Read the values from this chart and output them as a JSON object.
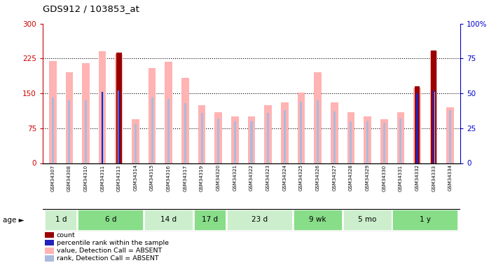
{
  "title": "GDS912 / 103853_at",
  "samples": [
    "GSM34307",
    "GSM34308",
    "GSM34310",
    "GSM34311",
    "GSM34313",
    "GSM34314",
    "GSM34315",
    "GSM34316",
    "GSM34317",
    "GSM34319",
    "GSM34320",
    "GSM34321",
    "GSM34322",
    "GSM34323",
    "GSM34324",
    "GSM34325",
    "GSM34326",
    "GSM34327",
    "GSM34328",
    "GSM34329",
    "GSM34330",
    "GSM34331",
    "GSM34332",
    "GSM34333",
    "GSM34334"
  ],
  "pink_values": [
    220,
    195,
    215,
    240,
    235,
    95,
    205,
    218,
    183,
    125,
    110,
    100,
    100,
    125,
    130,
    152,
    195,
    130,
    110,
    100,
    95,
    110,
    162,
    240,
    120
  ],
  "blue_rank_pct": [
    47,
    45,
    45,
    51,
    52,
    28,
    47,
    46,
    43,
    36,
    32,
    30,
    30,
    36,
    38,
    44,
    45,
    37,
    30,
    30,
    29,
    32,
    49,
    51,
    38
  ],
  "count_indices": [
    4,
    22,
    23
  ],
  "count_values": [
    237,
    165,
    243
  ],
  "percentile_indices": [
    3,
    4,
    22,
    23
  ],
  "percentile_pct": [
    51,
    52,
    50,
    52
  ],
  "age_groups": [
    {
      "label": "1 d",
      "start": 0,
      "end": 1
    },
    {
      "label": "6 d",
      "start": 2,
      "end": 5
    },
    {
      "label": "14 d",
      "start": 6,
      "end": 8
    },
    {
      "label": "17 d",
      "start": 9,
      "end": 10
    },
    {
      "label": "23 d",
      "start": 11,
      "end": 14
    },
    {
      "label": "9 wk",
      "start": 15,
      "end": 17
    },
    {
      "label": "5 mo",
      "start": 18,
      "end": 20
    },
    {
      "label": "1 y",
      "start": 21,
      "end": 24
    }
  ],
  "age_colors_alt": [
    "#cceecc",
    "#88dd88",
    "#cceecc",
    "#88dd88",
    "#cceecc",
    "#88dd88",
    "#cceecc",
    "#88dd88"
  ],
  "left_ylim": [
    0,
    300
  ],
  "right_ylim": [
    0,
    100
  ],
  "left_yticks": [
    0,
    75,
    150,
    225,
    300
  ],
  "right_yticks": [
    0,
    25,
    50,
    75,
    100
  ],
  "right_yticklabels": [
    "0",
    "25",
    "50",
    "75",
    "100%"
  ],
  "pink_color": "#ffb3b3",
  "blue_rank_color": "#aabbdd",
  "count_color": "#990000",
  "percentile_color": "#2222bb",
  "left_tick_color": "#cc0000",
  "right_tick_color": "#0000cc",
  "xtick_bg": "#cccccc",
  "age_row_border": "#000000"
}
